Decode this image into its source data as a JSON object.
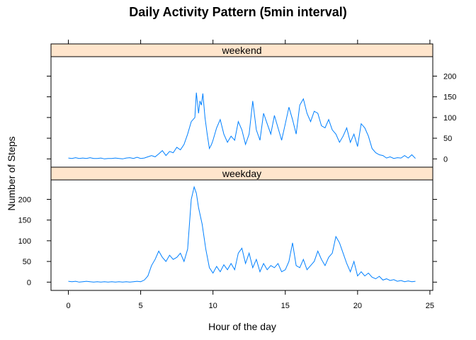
{
  "chart_data": {
    "type": "line",
    "title": "Daily Activity Pattern (5min interval)",
    "xlabel": "Hour of the day",
    "ylabel": "Number of Steps",
    "xlim": [
      -1.2,
      25.2
    ],
    "ylim": [
      -20,
      247
    ],
    "x_ticks": [
      0,
      5,
      10,
      15,
      20,
      25
    ],
    "y_ticks": [
      0,
      50,
      100,
      150,
      200
    ],
    "line_color": "#0080ff",
    "strip_color": "#ffe5cc",
    "panels": [
      {
        "name": "weekend",
        "points": [
          [
            0,
            2
          ],
          [
            0.25,
            1
          ],
          [
            0.5,
            3
          ],
          [
            0.75,
            1
          ],
          [
            1,
            2
          ],
          [
            1.25,
            1
          ],
          [
            1.5,
            3
          ],
          [
            1.75,
            1
          ],
          [
            2,
            1
          ],
          [
            2.25,
            2
          ],
          [
            2.5,
            0
          ],
          [
            2.75,
            1
          ],
          [
            3,
            1
          ],
          [
            3.25,
            2
          ],
          [
            3.5,
            1
          ],
          [
            3.75,
            0
          ],
          [
            4,
            2
          ],
          [
            4.25,
            3
          ],
          [
            4.5,
            1
          ],
          [
            4.75,
            4
          ],
          [
            5,
            1
          ],
          [
            5.25,
            2
          ],
          [
            5.5,
            5
          ],
          [
            5.75,
            8
          ],
          [
            6,
            5
          ],
          [
            6.25,
            12
          ],
          [
            6.5,
            20
          ],
          [
            6.75,
            8
          ],
          [
            7,
            18
          ],
          [
            7.25,
            15
          ],
          [
            7.5,
            28
          ],
          [
            7.75,
            22
          ],
          [
            8,
            35
          ],
          [
            8.25,
            60
          ],
          [
            8.5,
            90
          ],
          [
            8.75,
            100
          ],
          [
            8.85,
            160
          ],
          [
            9,
            110
          ],
          [
            9.1,
            140
          ],
          [
            9.2,
            130
          ],
          [
            9.3,
            158
          ],
          [
            9.45,
            100
          ],
          [
            9.6,
            60
          ],
          [
            9.75,
            25
          ],
          [
            9.9,
            35
          ],
          [
            10,
            45
          ],
          [
            10.25,
            75
          ],
          [
            10.5,
            95
          ],
          [
            10.75,
            60
          ],
          [
            11,
            40
          ],
          [
            11.25,
            55
          ],
          [
            11.5,
            45
          ],
          [
            11.75,
            90
          ],
          [
            12,
            70
          ],
          [
            12.25,
            35
          ],
          [
            12.5,
            60
          ],
          [
            12.75,
            140
          ],
          [
            13,
            70
          ],
          [
            13.25,
            45
          ],
          [
            13.5,
            110
          ],
          [
            13.75,
            85
          ],
          [
            14,
            60
          ],
          [
            14.25,
            105
          ],
          [
            14.5,
            75
          ],
          [
            14.75,
            45
          ],
          [
            15,
            85
          ],
          [
            15.25,
            125
          ],
          [
            15.5,
            95
          ],
          [
            15.75,
            60
          ],
          [
            16,
            130
          ],
          [
            16.25,
            145
          ],
          [
            16.5,
            110
          ],
          [
            16.75,
            90
          ],
          [
            17,
            115
          ],
          [
            17.25,
            110
          ],
          [
            17.5,
            80
          ],
          [
            17.75,
            75
          ],
          [
            18,
            95
          ],
          [
            18.25,
            70
          ],
          [
            18.5,
            60
          ],
          [
            18.75,
            40
          ],
          [
            19,
            55
          ],
          [
            19.25,
            75
          ],
          [
            19.5,
            40
          ],
          [
            19.75,
            60
          ],
          [
            20,
            30
          ],
          [
            20.25,
            85
          ],
          [
            20.5,
            75
          ],
          [
            20.75,
            55
          ],
          [
            21,
            25
          ],
          [
            21.25,
            15
          ],
          [
            21.5,
            10
          ],
          [
            21.75,
            8
          ],
          [
            22,
            2
          ],
          [
            22.25,
            5
          ],
          [
            22.5,
            1
          ],
          [
            22.75,
            3
          ],
          [
            23,
            2
          ],
          [
            23.25,
            8
          ],
          [
            23.5,
            2
          ],
          [
            23.75,
            10
          ],
          [
            24,
            1
          ]
        ]
      },
      {
        "name": "weekday",
        "points": [
          [
            0,
            2
          ],
          [
            0.25,
            1
          ],
          [
            0.5,
            2
          ],
          [
            0.75,
            0
          ],
          [
            1,
            1
          ],
          [
            1.25,
            2
          ],
          [
            1.5,
            1
          ],
          [
            1.75,
            0
          ],
          [
            2,
            1
          ],
          [
            2.25,
            0
          ],
          [
            2.5,
            1
          ],
          [
            2.75,
            0
          ],
          [
            3,
            1
          ],
          [
            3.25,
            0
          ],
          [
            3.5,
            1
          ],
          [
            3.75,
            0
          ],
          [
            4,
            1
          ],
          [
            4.25,
            0
          ],
          [
            4.5,
            1
          ],
          [
            4.75,
            2
          ],
          [
            5,
            1
          ],
          [
            5.25,
            5
          ],
          [
            5.5,
            15
          ],
          [
            5.75,
            40
          ],
          [
            6,
            55
          ],
          [
            6.25,
            75
          ],
          [
            6.5,
            60
          ],
          [
            6.75,
            50
          ],
          [
            7,
            65
          ],
          [
            7.25,
            55
          ],
          [
            7.5,
            60
          ],
          [
            7.75,
            70
          ],
          [
            8,
            50
          ],
          [
            8.25,
            80
          ],
          [
            8.5,
            200
          ],
          [
            8.7,
            230
          ],
          [
            8.85,
            215
          ],
          [
            9,
            180
          ],
          [
            9.25,
            140
          ],
          [
            9.5,
            80
          ],
          [
            9.75,
            35
          ],
          [
            10,
            22
          ],
          [
            10.25,
            38
          ],
          [
            10.5,
            25
          ],
          [
            10.75,
            42
          ],
          [
            11,
            30
          ],
          [
            11.25,
            45
          ],
          [
            11.5,
            30
          ],
          [
            11.75,
            70
          ],
          [
            12,
            82
          ],
          [
            12.25,
            45
          ],
          [
            12.5,
            70
          ],
          [
            12.75,
            35
          ],
          [
            13,
            55
          ],
          [
            13.25,
            25
          ],
          [
            13.5,
            45
          ],
          [
            13.75,
            30
          ],
          [
            14,
            40
          ],
          [
            14.25,
            35
          ],
          [
            14.5,
            45
          ],
          [
            14.75,
            25
          ],
          [
            15,
            30
          ],
          [
            15.25,
            50
          ],
          [
            15.5,
            95
          ],
          [
            15.75,
            40
          ],
          [
            16,
            35
          ],
          [
            16.25,
            55
          ],
          [
            16.5,
            30
          ],
          [
            16.75,
            40
          ],
          [
            17,
            50
          ],
          [
            17.25,
            75
          ],
          [
            17.5,
            55
          ],
          [
            17.75,
            40
          ],
          [
            18,
            60
          ],
          [
            18.25,
            70
          ],
          [
            18.5,
            110
          ],
          [
            18.75,
            95
          ],
          [
            19,
            70
          ],
          [
            19.25,
            45
          ],
          [
            19.5,
            25
          ],
          [
            19.75,
            50
          ],
          [
            20,
            15
          ],
          [
            20.25,
            25
          ],
          [
            20.5,
            15
          ],
          [
            20.75,
            22
          ],
          [
            21,
            12
          ],
          [
            21.25,
            8
          ],
          [
            21.5,
            14
          ],
          [
            21.75,
            5
          ],
          [
            22,
            8
          ],
          [
            22.25,
            4
          ],
          [
            22.5,
            6
          ],
          [
            22.75,
            2
          ],
          [
            23,
            4
          ],
          [
            23.25,
            1
          ],
          [
            23.5,
            3
          ],
          [
            23.75,
            1
          ],
          [
            24,
            2
          ]
        ]
      }
    ]
  }
}
